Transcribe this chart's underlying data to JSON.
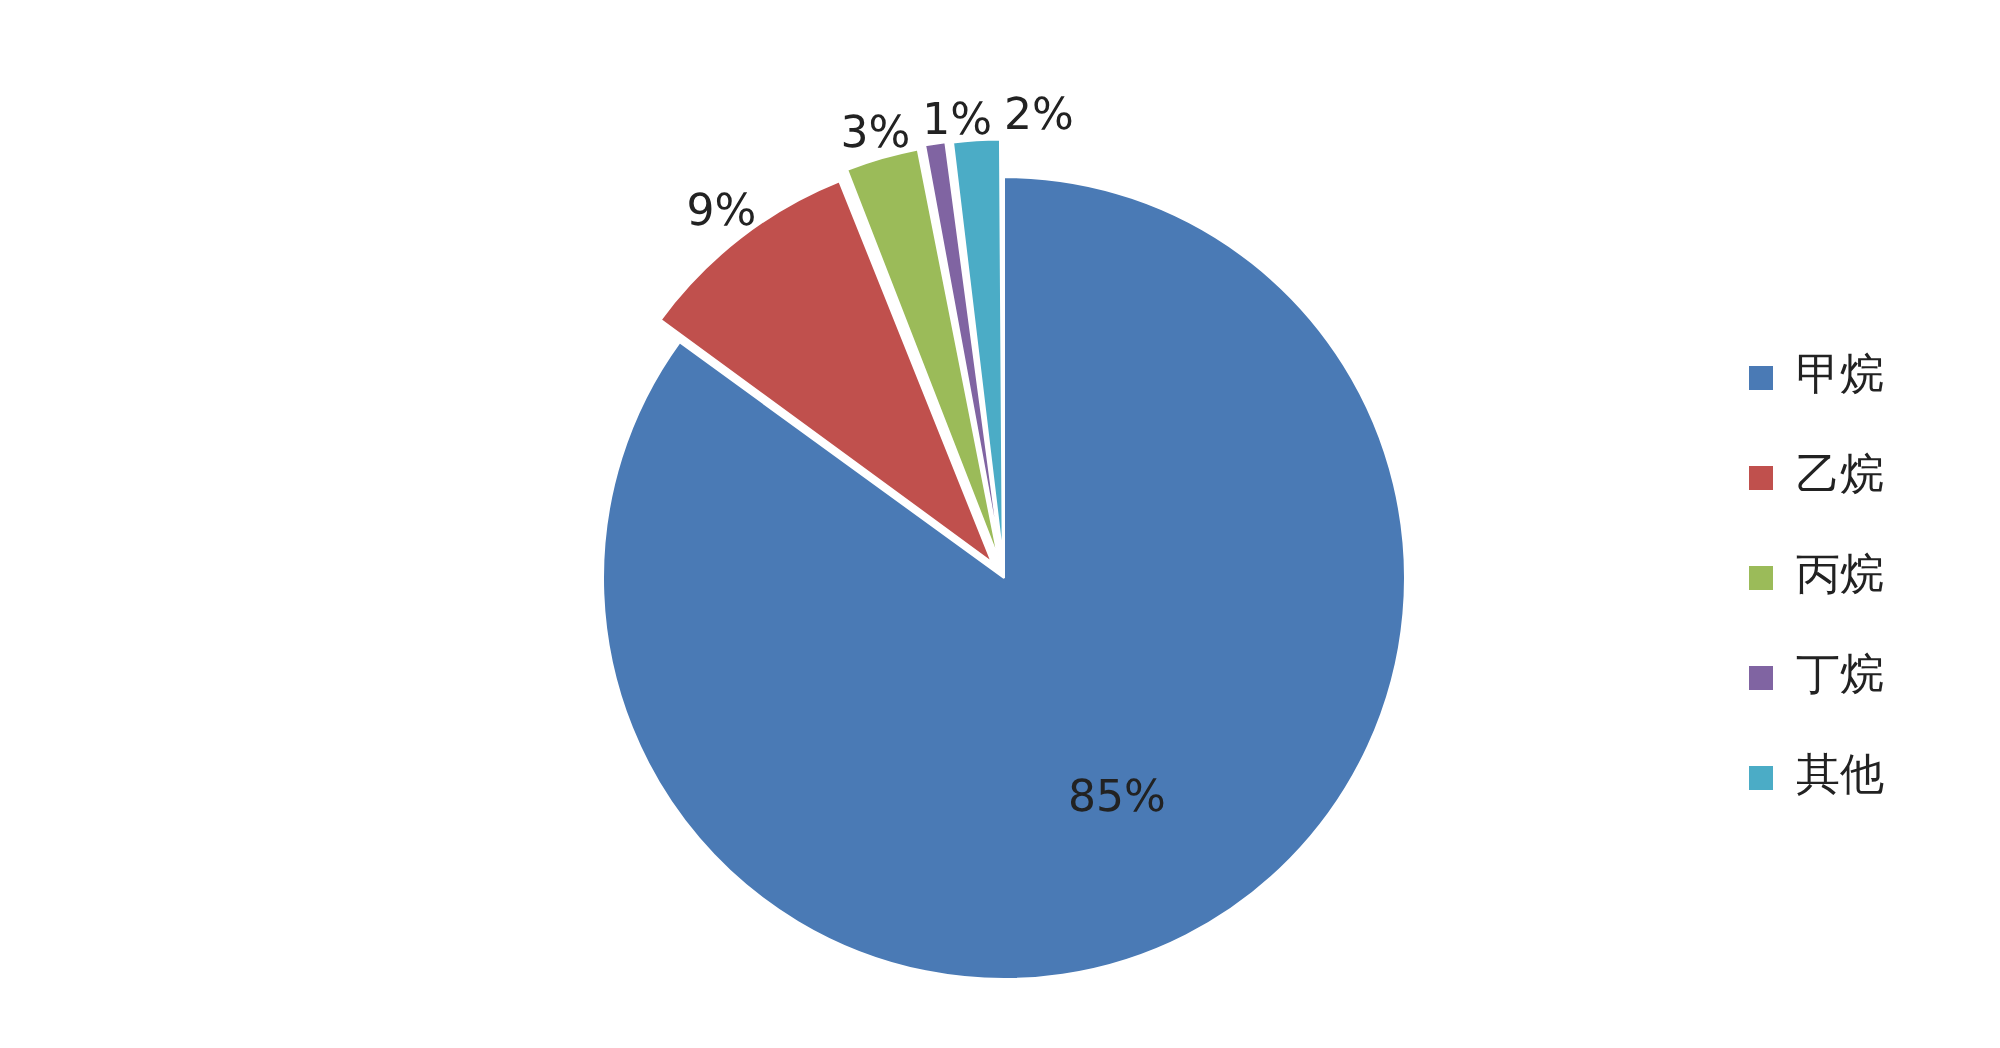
{
  "chart_data": {
    "type": "pie",
    "categories": [
      "甲烷",
      "乙烷",
      "丙烷",
      "丁烷",
      "其他"
    ],
    "values": [
      85,
      9,
      3,
      1,
      2
    ],
    "colors": [
      "#4a7ab5",
      "#c0504d",
      "#9bbb59",
      "#8064a2",
      "#4bacc6"
    ],
    "value_labels": [
      "85%",
      "9%",
      "3%",
      "1%",
      "2%"
    ],
    "legend": "right"
  }
}
